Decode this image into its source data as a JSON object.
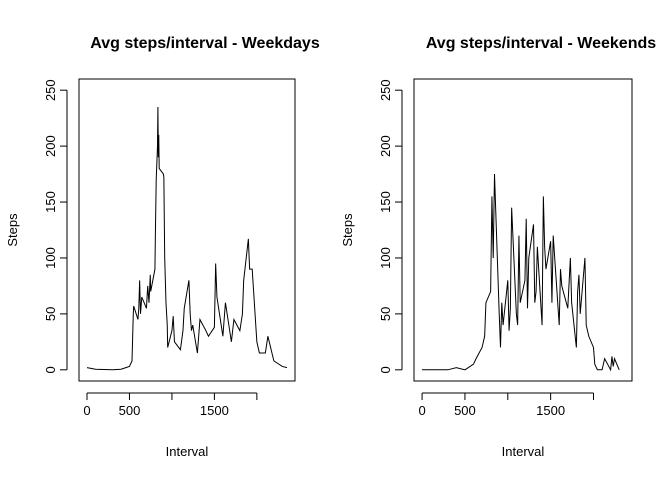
{
  "chart_data": [
    {
      "type": "line",
      "title": "Avg steps/interval - Weekdays",
      "x_label": "Interval",
      "y_label": "Steps",
      "x": [
        0,
        100,
        200,
        300,
        400,
        500,
        530,
        545,
        550,
        600,
        610,
        620,
        630,
        645,
        700,
        715,
        730,
        745,
        750,
        800,
        805,
        815,
        830,
        835,
        840,
        845,
        850,
        900,
        905,
        915,
        930,
        945,
        950,
        1000,
        1015,
        1030,
        1100,
        1130,
        1145,
        1200,
        1215,
        1230,
        1245,
        1300,
        1330,
        1400,
        1430,
        1500,
        1515,
        1530,
        1600,
        1630,
        1700,
        1730,
        1800,
        1830,
        1845,
        1900,
        1915,
        1945,
        2000,
        2030,
        2100,
        2130,
        2200,
        2300,
        2355
      ],
      "series": [
        {
          "name": "Steps",
          "color": "#000000",
          "values": [
            2,
            0.5,
            0.3,
            0,
            0.5,
            3,
            8,
            50,
            57,
            45,
            55,
            80,
            50,
            65,
            55,
            75,
            60,
            85,
            70,
            90,
            120,
            170,
            200,
            235,
            190,
            210,
            180,
            175,
            172,
            100,
            60,
            40,
            20,
            35,
            48,
            25,
            18,
            35,
            55,
            80,
            50,
            35,
            40,
            15,
            45,
            35,
            30,
            38,
            95,
            65,
            30,
            60,
            25,
            45,
            35,
            50,
            80,
            117,
            90,
            90,
            25,
            15,
            15,
            30,
            8,
            3,
            2
          ]
        }
      ],
      "xlim": [
        -94.2,
        2449.2
      ],
      "xticks": [
        0,
        500,
        {
          "value": 1000,
          "label": null
        },
        1500,
        {
          "value": 2000,
          "label": null
        }
      ],
      "ylim": [
        -10,
        260
      ],
      "yticks": [
        0,
        50,
        100,
        150,
        200,
        250
      ]
    },
    {
      "type": "line",
      "title": "Avg steps/interval - Weekends",
      "x_label": "Interval",
      "y_label": "Steps",
      "x": [
        0,
        100,
        200,
        300,
        400,
        500,
        600,
        630,
        700,
        730,
        745,
        800,
        815,
        830,
        845,
        900,
        915,
        930,
        945,
        1000,
        1015,
        1030,
        1045,
        1100,
        1115,
        1130,
        1145,
        1200,
        1215,
        1230,
        1245,
        1300,
        1315,
        1330,
        1345,
        1400,
        1415,
        1430,
        1445,
        1500,
        1515,
        1530,
        1600,
        1615,
        1630,
        1700,
        1730,
        1745,
        1800,
        1815,
        1830,
        1845,
        1900,
        1915,
        1945,
        2000,
        2015,
        2045,
        2100,
        2130,
        2200,
        2215,
        2230,
        2245,
        2300
      ],
      "series": [
        {
          "name": "Steps",
          "color": "#000000",
          "values": [
            0,
            0,
            0,
            0,
            2,
            0,
            5,
            10,
            20,
            30,
            60,
            70,
            155,
            100,
            175,
            50,
            20,
            60,
            40,
            80,
            35,
            55,
            145,
            50,
            40,
            120,
            60,
            80,
            135,
            55,
            100,
            130,
            60,
            70,
            110,
            40,
            155,
            110,
            90,
            115,
            60,
            120,
            40,
            90,
            75,
            55,
            100,
            60,
            20,
            70,
            85,
            50,
            100,
            40,
            30,
            20,
            5,
            0,
            0,
            10,
            0,
            12,
            3,
            10,
            0
          ]
        }
      ],
      "xlim": [
        -94.2,
        2449.2
      ],
      "xticks": [
        0,
        500,
        {
          "value": 1000,
          "label": null
        },
        1500,
        {
          "value": 2000,
          "label": null
        }
      ],
      "ylim": [
        -10,
        260
      ],
      "yticks": [
        0,
        50,
        100,
        150,
        200,
        250
      ]
    }
  ]
}
